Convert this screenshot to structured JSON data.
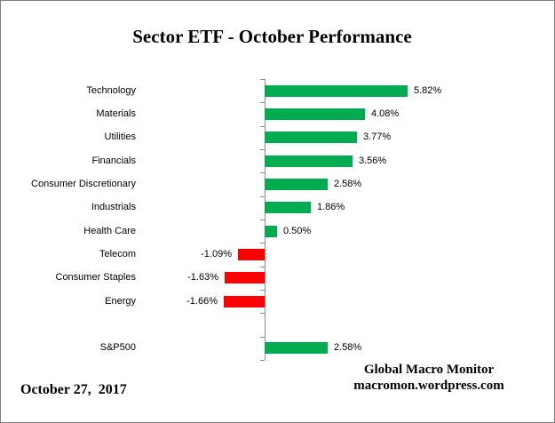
{
  "title": "Sector ETF - October Performance",
  "footer": {
    "date": "October 27,  2017",
    "brand_line1": "Global Macro Monitor",
    "brand_line2": "macromon.wordpress.com"
  },
  "colors": {
    "positive_bar": "#00AC4F",
    "negative_bar": "#FF0000",
    "axis": "#8C8C8C",
    "text": "#000000",
    "background": "#FFFFFF",
    "border": "#808080"
  },
  "chart_data": {
    "type": "bar",
    "orientation": "horizontal",
    "title": "Sector ETF - October Performance",
    "xlabel": "",
    "ylabel": "",
    "unit": "%",
    "grid": false,
    "legend": false,
    "value_label_position": "outside-end",
    "categories": [
      "Technology",
      "Materials",
      "Utilities",
      "Financials",
      "Consumer Discretionary",
      "Industrials",
      "Health Care",
      "Telecom",
      "Consumer Staples",
      "Energy",
      "",
      "S&P500"
    ],
    "values": [
      5.82,
      4.08,
      3.77,
      3.56,
      2.58,
      1.86,
      0.5,
      -1.09,
      -1.63,
      -1.66,
      null,
      2.58
    ],
    "value_labels": [
      "5.82%",
      "4.08%",
      "3.77%",
      "3.56%",
      "2.58%",
      "1.86%",
      "0.50%",
      "-1.09%",
      "-1.63%",
      "-1.66%",
      "",
      "2.58%"
    ]
  }
}
